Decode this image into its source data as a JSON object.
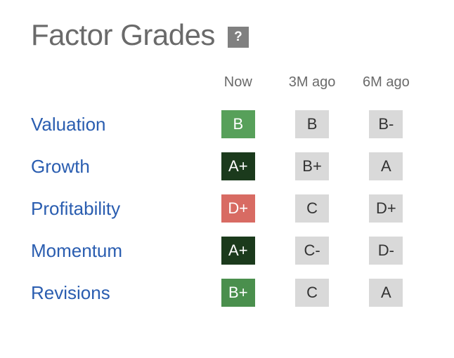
{
  "title": "Factor Grades",
  "help_label": "?",
  "columns": [
    "Now",
    "3M ago",
    "6M ago"
  ],
  "link_color": "#2a5db0",
  "past_badge_bg": "#d9d9d9",
  "past_badge_fg": "#333333",
  "now_badge_fg": "#ffffff",
  "grade_colors": {
    "A+": "#1b3a1c",
    "A": "#2e6b33",
    "A-": "#2e6b33",
    "B+": "#4a8f4d",
    "B": "#57a05a",
    "B-": "#6fb573",
    "C+": "#c9b458",
    "C": "#c7a84a",
    "C-": "#d09a4a",
    "D+": "#d86b63",
    "D": "#c95b53",
    "D-": "#b94b44",
    "F": "#a03a33"
  },
  "rows": [
    {
      "label": "Valuation",
      "now": "B",
      "m3": "B",
      "m6": "B-"
    },
    {
      "label": "Growth",
      "now": "A+",
      "m3": "B+",
      "m6": "A"
    },
    {
      "label": "Profitability",
      "now": "D+",
      "m3": "C",
      "m6": "D+"
    },
    {
      "label": "Momentum",
      "now": "A+",
      "m3": "C-",
      "m6": "D-"
    },
    {
      "label": "Revisions",
      "now": "B+",
      "m3": "C",
      "m6": "A"
    }
  ]
}
